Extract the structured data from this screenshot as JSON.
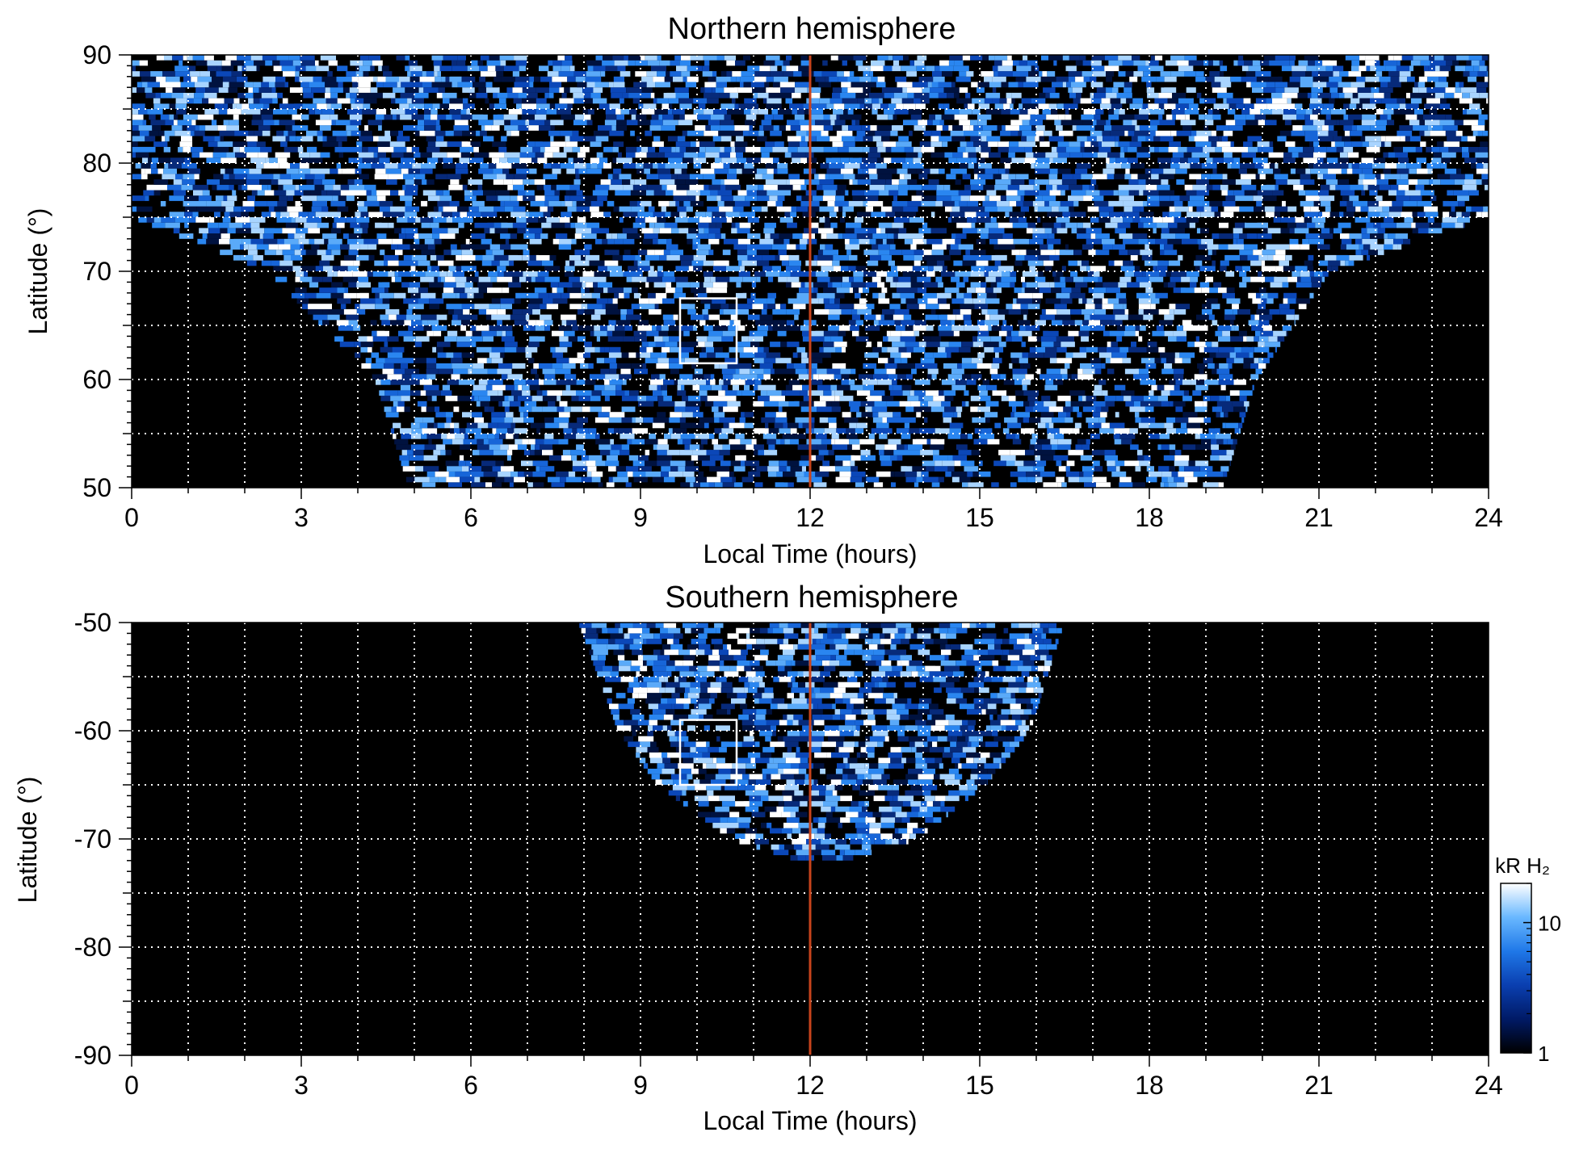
{
  "chart_data": [
    {
      "type": "heatmap",
      "title": "Northern hemisphere",
      "xlabel": "Local Time (hours)",
      "ylabel": "Latitude (°)",
      "xlim": [
        0,
        24
      ],
      "ylim": [
        50,
        90
      ],
      "xticks": [
        0,
        3,
        6,
        9,
        12,
        15,
        18,
        21,
        24
      ],
      "yticks": [
        50,
        60,
        70,
        80,
        90
      ],
      "grid": "dotted, every 1 hour and 5 degrees",
      "noon_line": {
        "x": 12,
        "color": "#c8441c"
      },
      "highlight_box": {
        "x": [
          9.7,
          10.7
        ],
        "y": [
          61.5,
          67.5
        ],
        "color": "#ffffff"
      },
      "coverage": {
        "description_points": [
          {
            "lat": 50,
            "lt_from": 4.9,
            "lt_to": 19.3
          },
          {
            "lat": 60,
            "lt_from": 4.3,
            "lt_to": 19.9
          },
          {
            "lat": 70,
            "lt_from": 2.4,
            "lt_to": 21.2
          },
          {
            "lat": 75,
            "lt_from": 0,
            "lt_to": 24
          },
          {
            "lat": 90,
            "lt_from": 0,
            "lt_to": 24
          }
        ]
      }
    },
    {
      "type": "heatmap",
      "title": "Southern hemisphere",
      "xlabel": "Local Time (hours)",
      "ylabel": "Latitude (°)",
      "xlim": [
        0,
        24
      ],
      "ylim": [
        -90,
        -50
      ],
      "xticks": [
        0,
        3,
        6,
        9,
        12,
        15,
        18,
        21,
        24
      ],
      "yticks": [
        -90,
        -80,
        -70,
        -60,
        -50
      ],
      "grid": "dotted, every 1 hour and 5 degrees",
      "noon_line": {
        "x": 12,
        "color": "#c8441c"
      },
      "highlight_box": {
        "x": [
          9.7,
          10.7
        ],
        "y": [
          -65,
          -59
        ],
        "color": "#ffffff"
      },
      "coverage": {
        "description_points": [
          {
            "lat": -50,
            "lt_from": 7.9,
            "lt_to": 16.5
          },
          {
            "lat": -60,
            "lt_from": 8.6,
            "lt_to": 15.9
          },
          {
            "lat": -65,
            "lt_from": 9.3,
            "lt_to": 15.1
          },
          {
            "lat": -70,
            "lt_from": 10.6,
            "lt_to": 13.9
          },
          {
            "lat": -72,
            "lt_from": 11.8,
            "lt_to": 12.6
          }
        ]
      }
    }
  ],
  "colorbar": {
    "label": "kR H₂",
    "scale": "log",
    "range": [
      1,
      20
    ],
    "ticks": [
      {
        "label": "1",
        "value": 1
      },
      {
        "label": "10",
        "value": 10
      }
    ],
    "colors": [
      "#000000",
      "#001a66",
      "#0a3fb0",
      "#1f78e8",
      "#69b8ff",
      "#ffffff"
    ]
  }
}
